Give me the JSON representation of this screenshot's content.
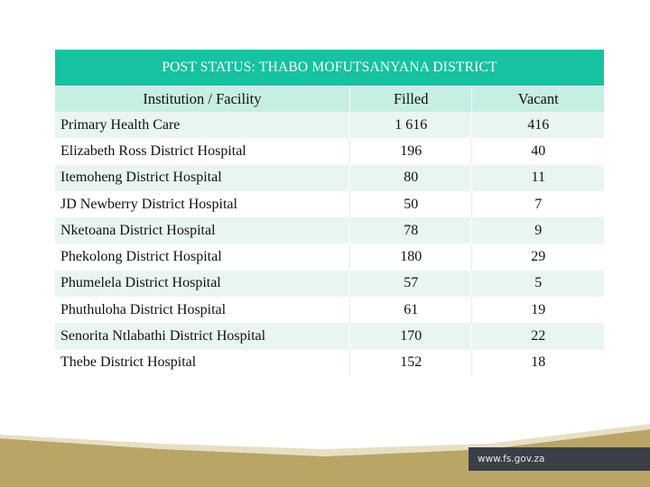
{
  "table": {
    "title": "POST STATUS: THABO MOFUTSANYANA DISTRICT",
    "headers": [
      "Institution / Facility",
      "Filled",
      "Vacant"
    ],
    "rows": [
      {
        "institution": "Primary Health Care",
        "filled": "1 616",
        "vacant": "416"
      },
      {
        "institution": "Elizabeth Ross District Hospital",
        "filled": "196",
        "vacant": "40"
      },
      {
        "institution": "Itemoheng District Hospital",
        "filled": "80",
        "vacant": "11"
      },
      {
        "institution": "JD Newberry District Hospital",
        "filled": "50",
        "vacant": "7"
      },
      {
        "institution": "Nketoana District Hospital",
        "filled": "78",
        "vacant": "9"
      },
      {
        "institution": "Phekolong District Hospital",
        "filled": "180",
        "vacant": "29"
      },
      {
        "institution": "Phumelela District Hospital",
        "filled": "57",
        "vacant": "5"
      },
      {
        "institution": "Phuthuloha District Hospital",
        "filled": "61",
        "vacant": "19"
      },
      {
        "institution": "Senorita Ntlabathi District Hospital",
        "filled": "170",
        "vacant": "22"
      },
      {
        "institution": "Thebe District Hospital",
        "filled": "152",
        "vacant": "18"
      }
    ]
  },
  "footer": {
    "url": "www.fs.gov.za"
  },
  "colors": {
    "title_bar": "#16c2a0",
    "header_row": "#c6efe4",
    "band_row": "#e9f6f0",
    "footer_gold": "#b9a566",
    "footer_box": "#3a3f47"
  }
}
